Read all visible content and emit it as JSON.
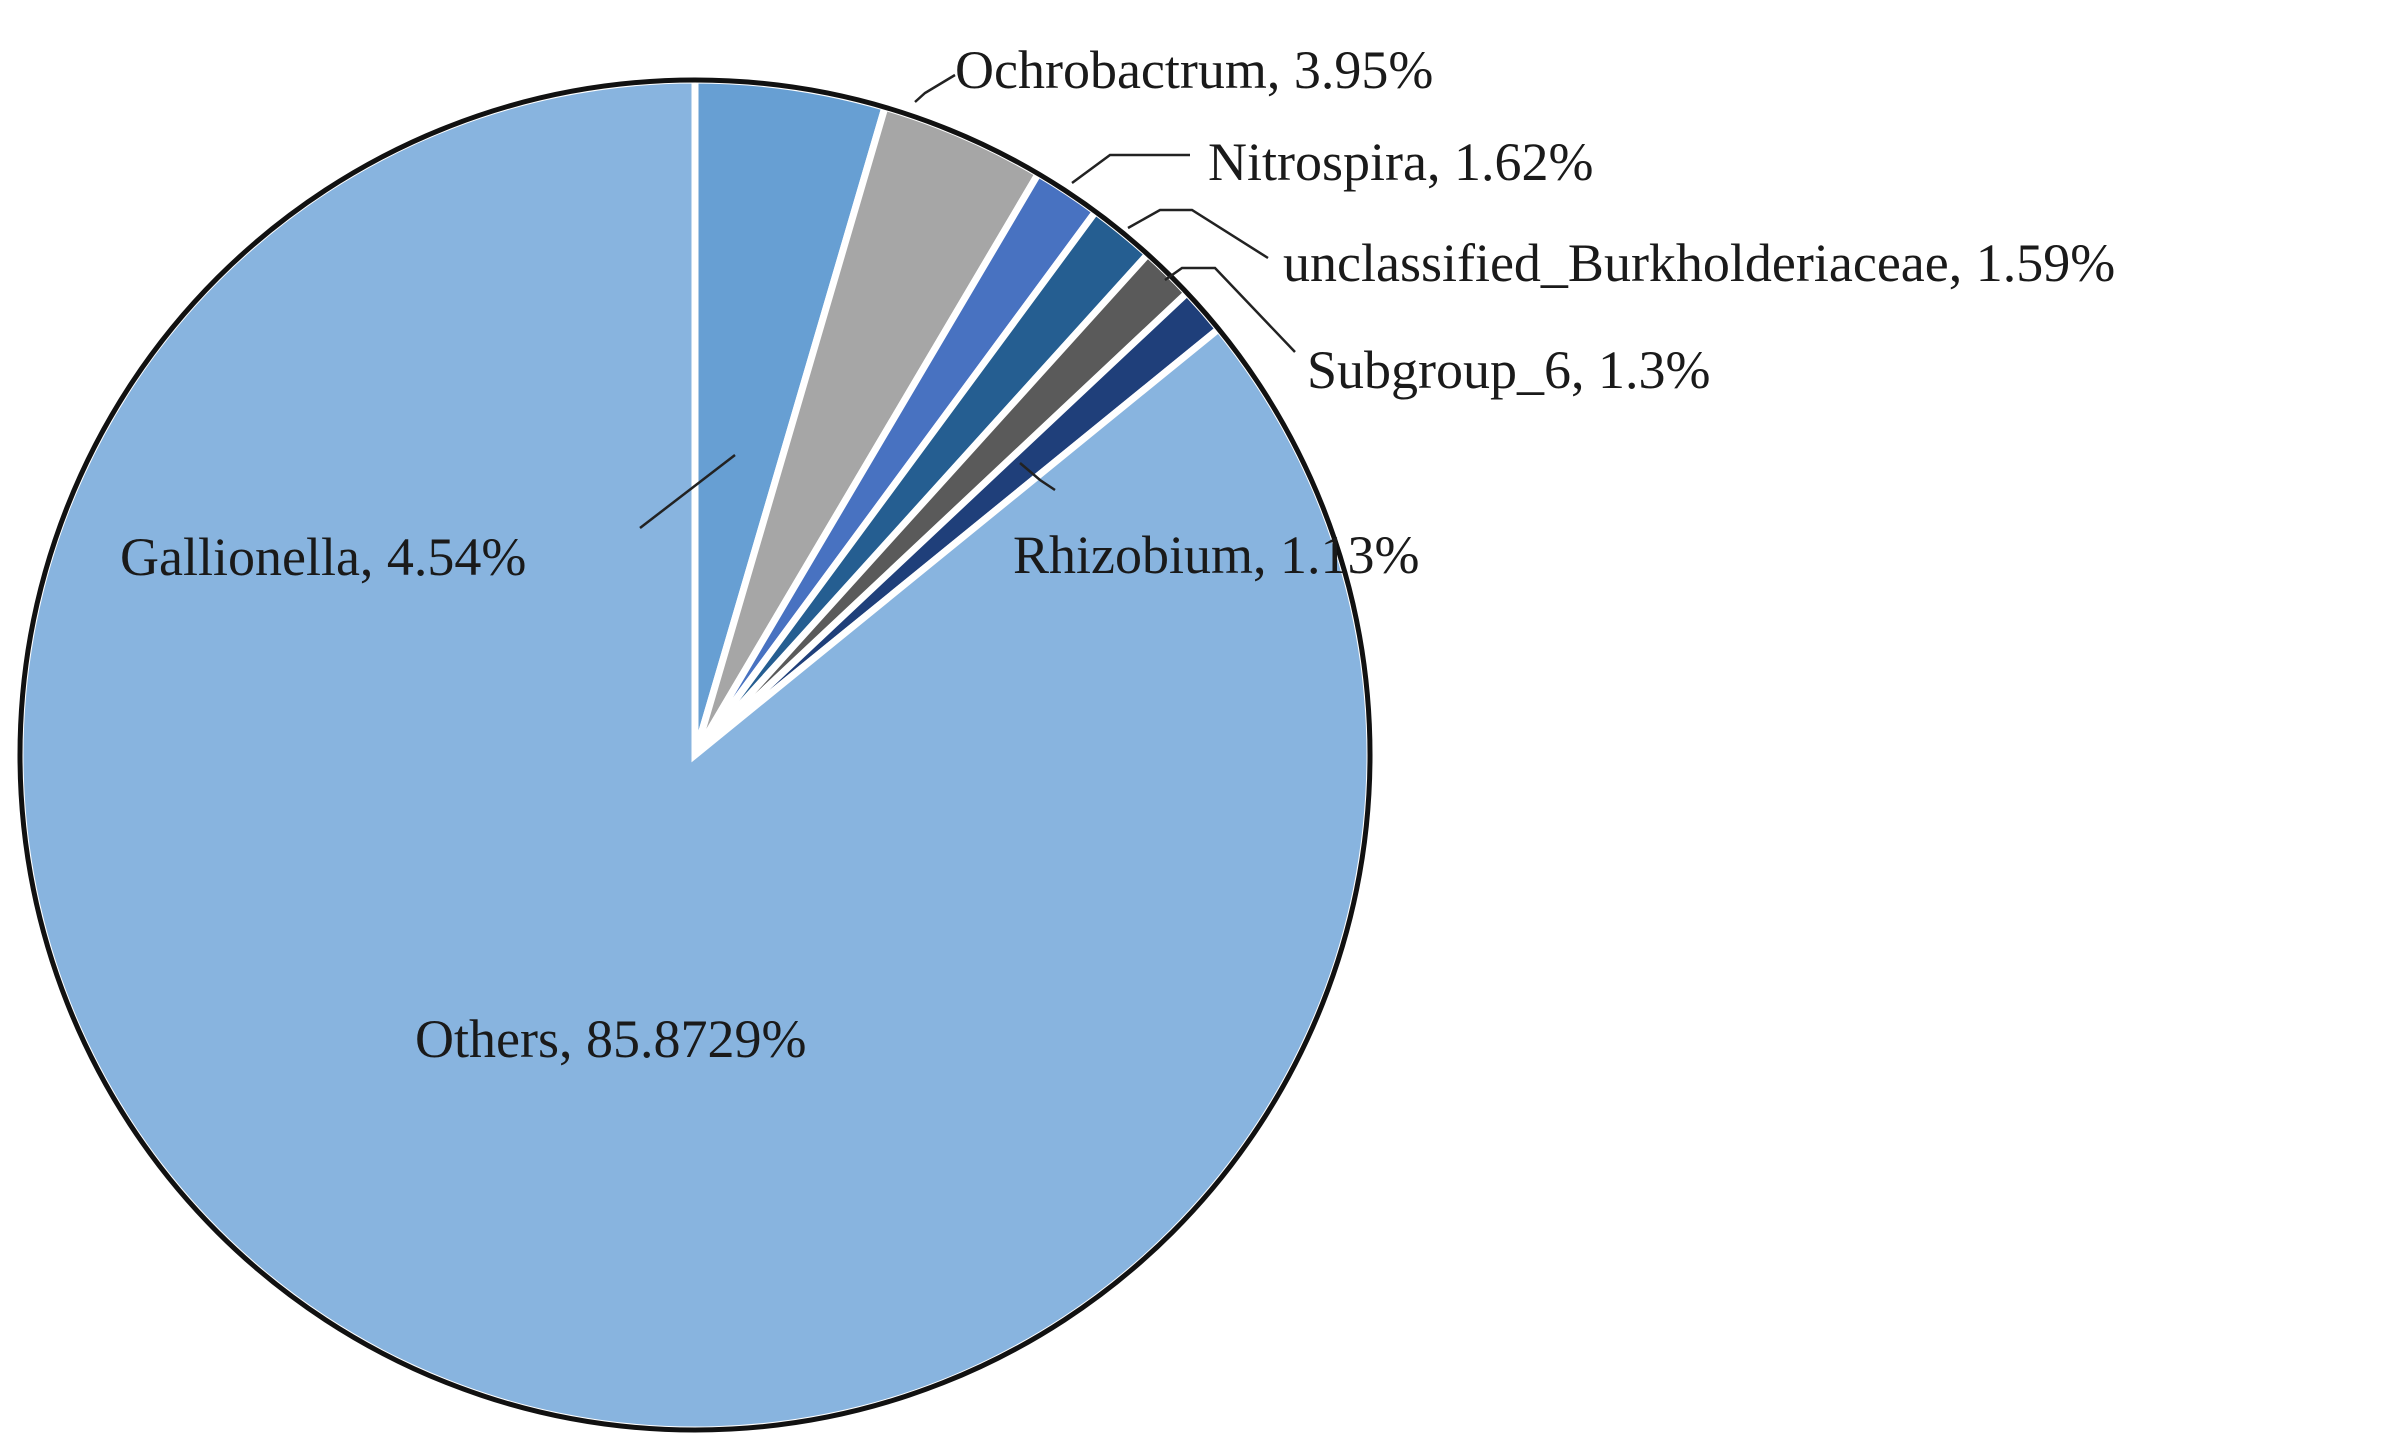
{
  "chart_data": {
    "type": "pie",
    "start_angle_deg": 0,
    "direction": "clockwise",
    "slices": [
      {
        "name": "Gallionella",
        "label": "Gallionella, 4.54%",
        "value": 4.54,
        "color": "#679fd3"
      },
      {
        "name": "Ochrobactrum",
        "label": "Ochrobactrum, 3.95%",
        "value": 3.95,
        "color": "#a6a6a6"
      },
      {
        "name": "Nitrospira",
        "label": "Nitrospira, 1.62%",
        "value": 1.62,
        "color": "#4872c1"
      },
      {
        "name": "unclassified_Burkholderiaceae",
        "label": "unclassified_Burkholderiaceae, 1.59%",
        "value": 1.59,
        "color": "#255e91"
      },
      {
        "name": "Subgroup_6",
        "label": "Subgroup_6, 1.3%",
        "value": 1.3,
        "color": "#5a5a5a"
      },
      {
        "name": "Rhizobium",
        "label": "Rhizobium, 1.13%",
        "value": 1.13,
        "color": "#1f3f7a"
      },
      {
        "name": "Others",
        "label": "Others, 85.8729%",
        "value": 85.8729,
        "color": "#88b4df"
      }
    ],
    "outline_color": "#111111",
    "separator_color": "#ffffff"
  }
}
